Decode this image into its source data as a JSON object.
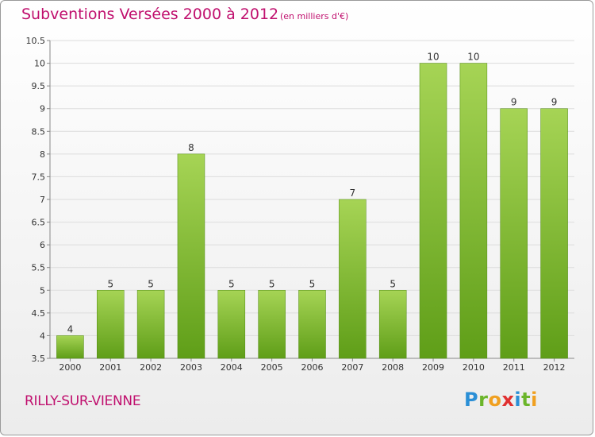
{
  "header": {
    "title": "Subventions Versées 2000 à 2012",
    "unit_note": "(en milliers d'€)"
  },
  "footer": {
    "commune": "RILLY-SUR-VIENNE",
    "logo_text": "Proxiti"
  },
  "colors": {
    "title": "#c0106e",
    "bar_light": "#a6d455",
    "bar_dark": "#5f9e18",
    "grid": "#dcdcdc"
  },
  "chart_data": {
    "type": "bar",
    "title": "Subventions Versées 2000 à 2012",
    "subtitle": "(en milliers d'€)",
    "xlabel": "",
    "ylabel": "",
    "categories": [
      "2000",
      "2001",
      "2002",
      "2003",
      "2004",
      "2005",
      "2006",
      "2007",
      "2008",
      "2009",
      "2010",
      "2011",
      "2012"
    ],
    "values": [
      4,
      5,
      5,
      8,
      5,
      5,
      5,
      7,
      5,
      10,
      10,
      9,
      9
    ],
    "ylim": [
      3.5,
      10.5
    ],
    "yticks": [
      "3.5",
      "4",
      "4.5",
      "5",
      "5.5",
      "6",
      "6.5",
      "7",
      "7.5",
      "8",
      "8.5",
      "9",
      "9.5",
      "10",
      "10.5"
    ],
    "grid": true,
    "legend": "none"
  }
}
